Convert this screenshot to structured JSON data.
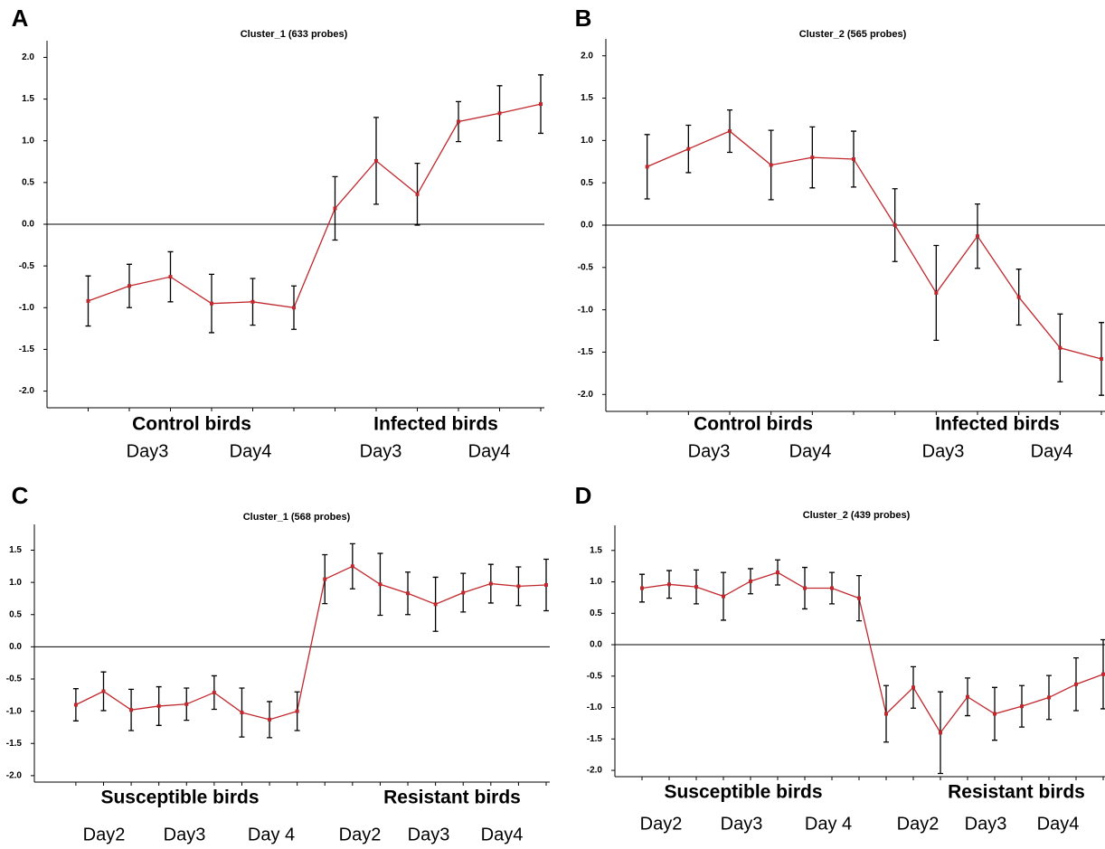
{
  "chart_data": [
    {
      "type": "line",
      "panel": "A",
      "title": "Cluster_1 (633 probes)",
      "color": "#c0282d",
      "zero_line": true,
      "x": [
        1,
        2,
        3,
        4,
        5,
        6,
        7,
        8,
        9,
        10,
        11,
        12
      ],
      "xlim": [
        0,
        12
      ],
      "values": [
        -0.92,
        -0.74,
        -0.63,
        -0.95,
        -0.93,
        -1.0,
        0.19,
        0.76,
        0.36,
        1.23,
        1.33,
        1.44
      ],
      "errors": [
        0.3,
        0.26,
        0.3,
        0.35,
        0.28,
        0.26,
        0.38,
        0.52,
        0.37,
        0.24,
        0.33,
        0.35
      ],
      "ylim": [
        -2.2,
        2.2
      ],
      "yticks": [
        {
          "value": -2,
          "label": "-2.0"
        },
        -1.5,
        {
          "value": -1,
          "label": "-1.0"
        },
        -0.5,
        {
          "value": 0,
          "label": "0.0"
        },
        0.5,
        {
          "value": 1,
          "label": "1.0"
        },
        1.5,
        {
          "value": 2,
          "label": "2.0"
        }
      ],
      "groups": [
        "Control birds",
        "Infected birds"
      ],
      "days": [
        "Day3",
        "Day4",
        "Day3",
        "Day4"
      ]
    },
    {
      "type": "line",
      "panel": "B",
      "title": "Cluster_2 (565 probes)",
      "color": "#c0282d",
      "zero_line": true,
      "x": [
        1,
        2,
        3,
        4,
        5,
        6,
        7,
        8,
        9,
        10,
        11,
        12
      ],
      "xlim": [
        0,
        12
      ],
      "values": [
        0.69,
        0.9,
        1.11,
        0.71,
        0.8,
        0.78,
        0.0,
        -0.8,
        -0.13,
        -0.85,
        -1.45,
        -1.58
      ],
      "errors": [
        0.38,
        0.28,
        0.25,
        0.41,
        0.36,
        0.33,
        0.43,
        0.56,
        0.38,
        0.33,
        0.4,
        0.43
      ],
      "ylim": [
        -2.2,
        2.2
      ],
      "yticks": [
        {
          "value": -2,
          "label": "-2.0"
        },
        -1.5,
        {
          "value": -1,
          "label": "-1.0"
        },
        -0.5,
        {
          "value": 0,
          "label": "0.0"
        },
        0.5,
        {
          "value": 1,
          "label": "1.0"
        },
        1.5,
        {
          "value": 2,
          "label": "2.0"
        }
      ],
      "groups": [
        "Control birds",
        "Infected birds"
      ],
      "days": [
        "Day3",
        "Day4",
        "Day3",
        "Day4"
      ]
    },
    {
      "type": "line",
      "panel": "C",
      "title": "Cluster_1 (568 probes)",
      "color": "#c0282d",
      "zero_line": true,
      "x": [
        1,
        2,
        3,
        4,
        5,
        6,
        7,
        8,
        9,
        10,
        11,
        12,
        13,
        14,
        15,
        16,
        17,
        18
      ],
      "xlim": [
        -0.5,
        18
      ],
      "values": [
        -0.9,
        -0.69,
        -0.98,
        -0.92,
        -0.89,
        -0.71,
        -1.02,
        -1.13,
        -1.0,
        1.05,
        1.25,
        0.97,
        0.83,
        0.66,
        0.84,
        0.98,
        0.94,
        0.96
      ],
      "errors": [
        0.25,
        0.3,
        0.32,
        0.3,
        0.25,
        0.26,
        0.38,
        0.28,
        0.3,
        0.38,
        0.35,
        0.48,
        0.33,
        0.42,
        0.3,
        0.3,
        0.3,
        0.4
      ],
      "ylim": [
        -2.1,
        1.9
      ],
      "yticks": [
        {
          "value": -2,
          "label": "-2.0"
        },
        -1.5,
        {
          "value": -1,
          "label": "-1.0"
        },
        -0.5,
        {
          "value": 0,
          "label": "0.0"
        },
        0.5,
        {
          "value": 1,
          "label": "1.0"
        },
        1.5
      ],
      "groups": [
        "Susceptible birds",
        "Resistant birds"
      ],
      "days": [
        "Day2",
        "Day3",
        "Day 4",
        "Day2",
        "Day3",
        "Day4"
      ]
    },
    {
      "type": "line",
      "panel": "D",
      "title": "Cluster_2 (439 probes)",
      "color": "#c0282d",
      "zero_line": true,
      "x": [
        1,
        2,
        3,
        4,
        5,
        6,
        7,
        8,
        9,
        10,
        11,
        12,
        13,
        14,
        15,
        16,
        17,
        18
      ],
      "xlim": [
        0,
        18
      ],
      "values": [
        0.9,
        0.96,
        0.92,
        0.77,
        1.01,
        1.15,
        0.9,
        0.9,
        0.74,
        -1.1,
        -0.68,
        -1.4,
        -0.83,
        -1.1,
        -0.98,
        -0.84,
        -0.63,
        -0.47
      ],
      "errors": [
        0.22,
        0.22,
        0.27,
        0.38,
        0.2,
        0.2,
        0.33,
        0.25,
        0.36,
        0.45,
        0.33,
        0.65,
        0.3,
        0.42,
        0.33,
        0.35,
        0.42,
        0.55
      ],
      "ylim": [
        -2.1,
        1.9
      ],
      "yticks": [
        {
          "value": -2,
          "label": "-2.0"
        },
        -1.5,
        {
          "value": -1,
          "label": "-1.0"
        },
        -0.5,
        {
          "value": 0,
          "label": "0.0"
        },
        0.5,
        {
          "value": 1,
          "label": "1.0"
        },
        1.5
      ],
      "groups": [
        "Susceptible birds",
        "Resistant birds"
      ],
      "days": [
        "Day2",
        "Day3",
        "Day 4",
        "Day2",
        "Day3",
        "Day4"
      ]
    }
  ]
}
